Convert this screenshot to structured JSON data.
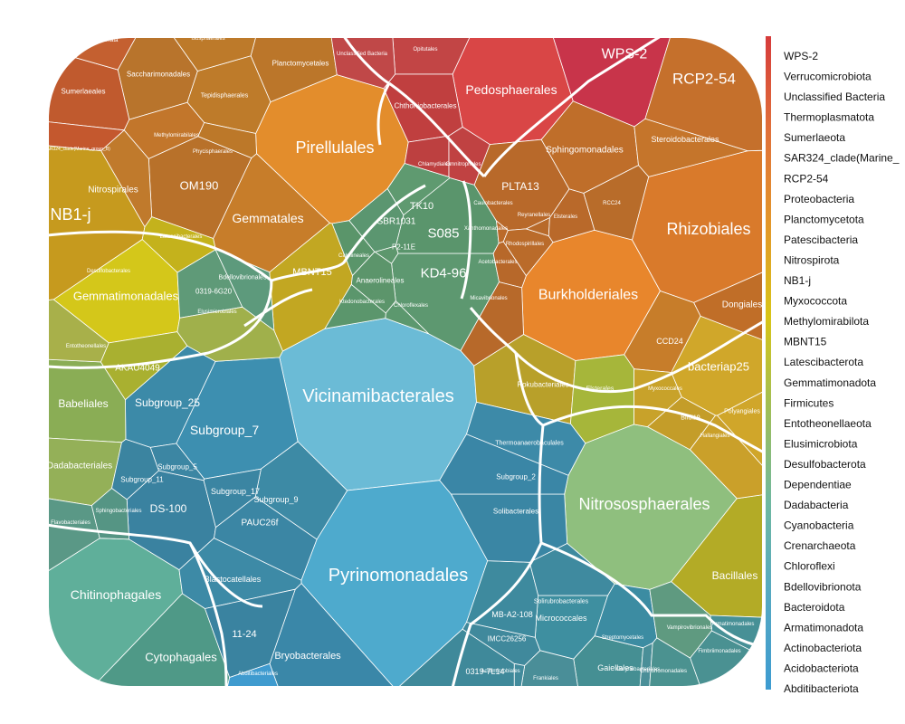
{
  "chart_data": {
    "type": "voronoi-treemap",
    "colorbar_colors": [
      "#d63b3b",
      "#e0703a",
      "#e3962a",
      "#d8c417",
      "#9fbe57",
      "#6fb8a0",
      "#55a8c2",
      "#3d9bd1"
    ],
    "legend": [
      "WPS-2",
      "Verrucomicrobiota",
      "Unclassified Bacteria",
      "Thermoplasmatota",
      "Sumerlaeota",
      "SAR324_clade(Marine_",
      "RCP2-54",
      "Proteobacteria",
      "Planctomycetota",
      "Patescibacteria",
      "Nitrospirota",
      "NB1-j",
      "Myxococcota",
      "Methylomirabilota",
      "MBNT15",
      "Latescibacterota",
      "Gemmatimonadota",
      "Firmicutes",
      "Entotheonellaeota",
      "Elusimicrobiota",
      "Desulfobacterota",
      "Dependentiae",
      "Dadabacteria",
      "Cyanobacteria",
      "Crenarchaeota",
      "Chloroflexi",
      "Bdellovibrionota",
      "Bacteroidota",
      "Armatimonadota",
      "Actinobacteriota",
      "Acidobacteriota",
      "Abditibacteriota"
    ],
    "cells": [
      {
        "label": "Vicinamibacterales",
        "color": "#6bbbd6"
      },
      {
        "label": "Pyrinomonadales",
        "color": "#4eaacd"
      },
      {
        "label": "Nitrososphaerales",
        "color": "#8fbf7e"
      },
      {
        "label": "Burkholderiales",
        "color": "#e8862c"
      },
      {
        "label": "Rhizobiales",
        "color": "#d97a2b"
      },
      {
        "label": "Pirellulales",
        "color": "#e38d2c"
      },
      {
        "label": "Pedosphaerales",
        "color": "#d94646"
      },
      {
        "label": "Gemmatimonadales",
        "color": "#d4c71a"
      },
      {
        "label": "Chitinophagales",
        "color": "#5faf9a"
      },
      {
        "label": "Gemmatales",
        "color": "#c77d2a"
      },
      {
        "label": "NB1-j",
        "color": "#c69a1e"
      },
      {
        "label": "WPS-2",
        "color": "#c8344a"
      },
      {
        "label": "RCP2-54",
        "color": "#c5702c"
      },
      {
        "label": "bacteriap25",
        "color": "#d0a72a"
      },
      {
        "label": "Subgroup_7",
        "color": "#3d8fb0"
      },
      {
        "label": "Subgroup_25",
        "color": "#3c8aa8"
      },
      {
        "label": "Babeliales",
        "color": "#8aad55"
      },
      {
        "label": "Dadabacteriales",
        "color": "#94b058"
      },
      {
        "label": "Cytophagales",
        "color": "#4f9987"
      },
      {
        "label": "Bryobacterales",
        "color": "#3a87a8"
      },
      {
        "label": "KD4-96",
        "color": "#5d9870"
      },
      {
        "label": "S085",
        "color": "#5a956c"
      },
      {
        "label": "MBNT15",
        "color": "#c2a722"
      },
      {
        "label": "OM190",
        "color": "#b8712a"
      },
      {
        "label": "Nitrospirales",
        "color": "#c07a2c"
      },
      {
        "label": "PLTA13",
        "color": "#b8692a"
      },
      {
        "label": "Sphingomonadales",
        "color": "#bf6e2a"
      },
      {
        "label": "Steroidobacterales",
        "color": "#c5752b"
      },
      {
        "label": "Planctomycetales",
        "color": "#bb762a"
      },
      {
        "label": "Saccharimonadales",
        "color": "#b8742c"
      },
      {
        "label": "Sumerlaeales",
        "color": "#c05a2e"
      },
      {
        "label": "Chthoniobacterales",
        "color": "#c03f3f"
      },
      {
        "label": "Tepidisphaerales",
        "color": "#be7b2a"
      },
      {
        "label": "Bacillales",
        "color": "#b3ab26"
      },
      {
        "label": "Dongiales",
        "color": "#c06e28"
      },
      {
        "label": "CCD24",
        "color": "#c77d2a"
      },
      {
        "label": "Rokubacteriales",
        "color": "#b8a02a"
      },
      {
        "label": "Elsterales",
        "color": "#a6b63a"
      },
      {
        "label": "Micrococcales",
        "color": "#3e8fa0"
      },
      {
        "label": "Gaiellales",
        "color": "#458f93"
      },
      {
        "label": "MB-A2-108",
        "color": "#3e8a9e"
      },
      {
        "label": "DS-100",
        "color": "#3a82a0"
      },
      {
        "label": "PAUC26f",
        "color": "#3b86a4"
      },
      {
        "label": "Subgroup_9",
        "color": "#3d8aa5"
      },
      {
        "label": "Subgroup_17",
        "color": "#3b85a2"
      },
      {
        "label": "Subgroup_5",
        "color": "#3c86a3"
      },
      {
        "label": "Subgroup_11",
        "color": "#3b84a0"
      },
      {
        "label": "Blastocatellales",
        "color": "#3d8aa6"
      },
      {
        "label": "11-24",
        "color": "#3a83a0"
      },
      {
        "label": "AKAU4049",
        "color": "#a9b030"
      },
      {
        "label": "0319-6G20",
        "color": "#5f9a78"
      },
      {
        "label": "SBR1031",
        "color": "#5b9670"
      },
      {
        "label": "TK10",
        "color": "#5f9a70"
      },
      {
        "label": "P2-11E",
        "color": "#5d976d"
      },
      {
        "label": "Anaerolineales",
        "color": "#5c956b"
      },
      {
        "label": "0319-7L14",
        "color": "#3f899a"
      },
      {
        "label": "IMCC26256",
        "color": "#40899c"
      },
      {
        "label": "Solibacterales",
        "color": "#3a86a4"
      },
      {
        "label": "Subgroup_2",
        "color": "#3a86a6"
      },
      {
        "label": "Thermoanaerobaculales",
        "color": "#3d8aa8"
      },
      {
        "label": "Latescibacterales",
        "color": "#c4b21c"
      },
      {
        "label": "Bdellovibrionales",
        "color": "#5d9a7c"
      },
      {
        "label": "Hallangiales",
        "color": "#caa02a"
      },
      {
        "label": "Polyangiales",
        "color": "#d0a62a"
      },
      {
        "label": "Blfdi19",
        "color": "#c49d29"
      },
      {
        "label": "Myxococcales",
        "color": "#c8a22a"
      },
      {
        "label": "Frankiales",
        "color": "#4a8e98"
      },
      {
        "label": "Acidimicrobiales",
        "color": "#428b9c"
      },
      {
        "label": "Solirubrobacterales",
        "color": "#3f8a9f"
      },
      {
        "label": "Streptomycetales",
        "color": "#3c8ca2"
      },
      {
        "label": "Corynebacteriales",
        "color": "#4a8f98"
      },
      {
        "label": "Vampirovibrionales",
        "color": "#5f9a80"
      },
      {
        "label": "Fimbriimonadales",
        "color": "#4a9192"
      },
      {
        "label": "Chthonomonadales",
        "color": "#4b9290"
      },
      {
        "label": "Flavobacteriales",
        "color": "#5a9886"
      },
      {
        "label": "Sphingobacteriales",
        "color": "#559584"
      },
      {
        "label": "Chloroflexales",
        "color": "#5c986e"
      },
      {
        "label": "Caldilineales",
        "color": "#5a956a"
      },
      {
        "label": "Ktedonobacterales",
        "color": "#5b966c"
      },
      {
        "label": "Opitutales",
        "color": "#c24545"
      },
      {
        "label": "Chlamydiales",
        "color": "#bd4040"
      },
      {
        "label": "Omnitrophales",
        "color": "#c04242"
      },
      {
        "label": "Xanthomonadales",
        "color": "#bb6a2a"
      },
      {
        "label": "Caulobacterales",
        "color": "#b9692a"
      },
      {
        "label": "Acetobacterales",
        "color": "#b7682a"
      },
      {
        "label": "Rhodospirillales",
        "color": "#ba6b2a"
      },
      {
        "label": "Reyranellales",
        "color": "#b86a2a"
      },
      {
        "label": "Elsterales ",
        "color": "#b9692a"
      },
      {
        "label": "RCC24",
        "color": "#b86c2a"
      },
      {
        "label": "Micavibrionales",
        "color": "#b7692a"
      },
      {
        "label": "Isosphaerales",
        "color": "#bd7a2a"
      },
      {
        "label": "Phycisphaerales",
        "color": "#bc7829"
      },
      {
        "label": "Methylomirabilales",
        "color": "#c2762b"
      },
      {
        "label": "SAR324_clade(Marine_group_B)",
        "color": "#c4582e"
      },
      {
        "label": "Thermoplasmata",
        "color": "#c46030"
      },
      {
        "label": "Unclassified Bacteria",
        "color": "#c04848"
      },
      {
        "label": "Desulfobacterales",
        "color": "#9aa845"
      },
      {
        "label": "Elusimicrobiales",
        "color": "#a0b04b"
      },
      {
        "label": "Entotheonellales",
        "color": "#a8b04a"
      },
      {
        "label": "Armatimonadales",
        "color": "#479096"
      },
      {
        "label": "Abditibacteriales",
        "color": "#3f9bcf"
      }
    ]
  }
}
